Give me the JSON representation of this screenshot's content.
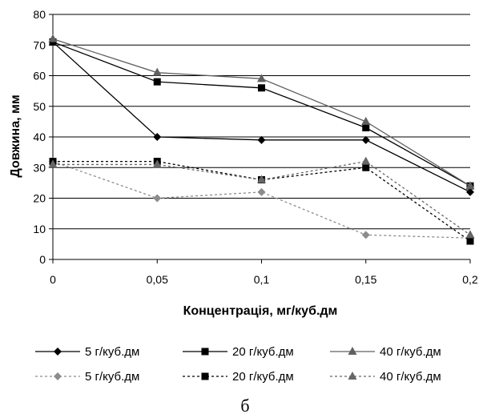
{
  "chart_data": {
    "type": "line",
    "title": "",
    "xlabel": "Концентрація, мг/куб.дм",
    "ylabel": "Довжина, мм",
    "caption": "б",
    "x": [
      0,
      0.05,
      0.1,
      0.15,
      0.2
    ],
    "x_tick_labels": [
      "0",
      "0,05",
      "0,1",
      "0,15",
      "0,2"
    ],
    "y_ticks": [
      0,
      10,
      20,
      30,
      40,
      50,
      60,
      70,
      80
    ],
    "y_tick_labels": [
      "0",
      "10",
      "20",
      "30",
      "40",
      "50",
      "60",
      "70",
      "80"
    ],
    "xlim": [
      0,
      0.2
    ],
    "ylim": [
      0,
      80
    ],
    "grid": "horizontal",
    "legend_position": "bottom",
    "series": [
      {
        "name": "5 г/куб.дм",
        "values": [
          71,
          40,
          39,
          39,
          22
        ],
        "line": "solid",
        "marker": "diamond",
        "color": "#000000"
      },
      {
        "name": "20 г/куб.дм",
        "values": [
          71,
          58,
          56,
          43,
          24
        ],
        "line": "solid",
        "marker": "square",
        "color": "#000000"
      },
      {
        "name": "40 г/куб.дм",
        "values": [
          72,
          61,
          59,
          45,
          24
        ],
        "line": "solid",
        "marker": "triangle",
        "color": "#606060"
      },
      {
        "name": "5 г/куб.дм",
        "values": [
          32,
          20,
          22,
          8,
          7
        ],
        "line": "dotted",
        "marker": "diamond",
        "color": "#8c8c8c"
      },
      {
        "name": "20 г/куб.дм",
        "values": [
          32,
          32,
          26,
          30,
          6
        ],
        "line": "dotted",
        "marker": "square",
        "color": "#000000"
      },
      {
        "name": "40 г/куб.дм",
        "values": [
          31,
          31,
          26,
          32,
          8
        ],
        "line": "dotted",
        "marker": "triangle",
        "color": "#666666"
      }
    ]
  }
}
